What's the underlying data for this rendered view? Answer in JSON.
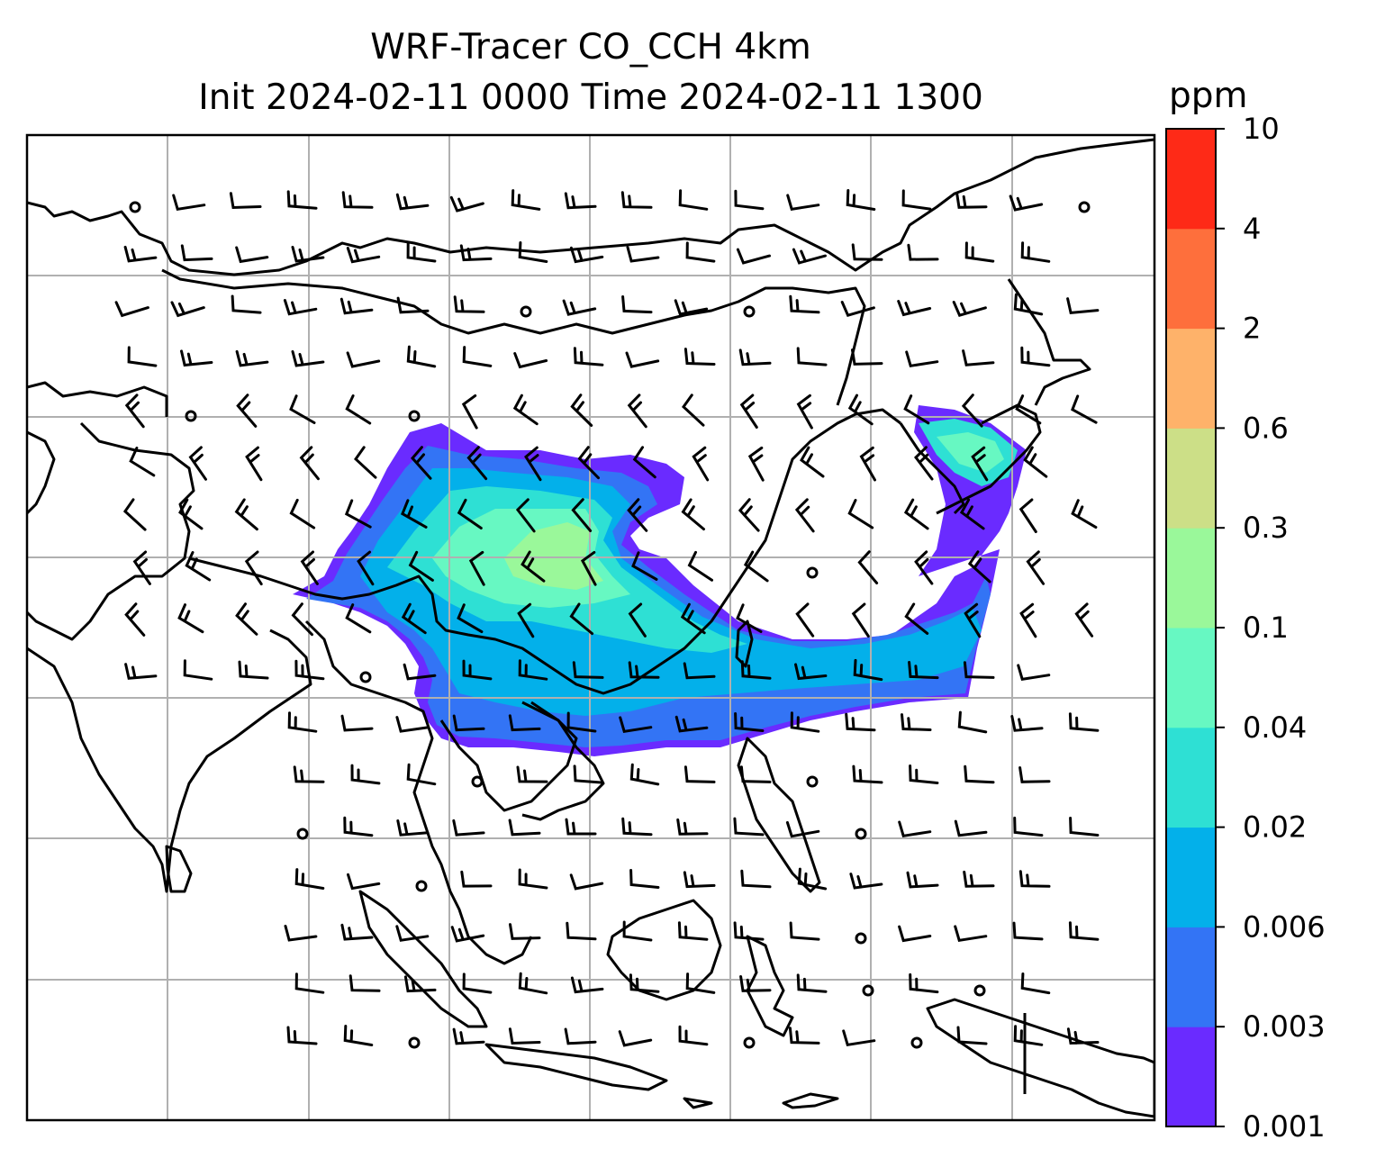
{
  "title": {
    "line1": "WRF-Tracer CO_CCH 4km",
    "line2": "Init 2024-02-11 0000 Time 2024-02-11 1300"
  },
  "colorbar": {
    "unit": "ppm",
    "levels": [
      "0.001",
      "0.003",
      "0.006",
      "0.02",
      "0.04",
      "0.1",
      "0.3",
      "0.6",
      "2",
      "4",
      "10"
    ],
    "colors": [
      "#6a2bff",
      "#3374f5",
      "#03b0ea",
      "#2ee0d4",
      "#67f8c2",
      "#9af89a",
      "#ccdf87",
      "#feb26a",
      "#fe6f3c",
      "#fe2a17"
    ]
  },
  "map": {
    "gridlines": true,
    "coastline_color": "#000000",
    "grid_color": "#b0b0b0"
  },
  "wind_barbs": {
    "color": "#000000"
  }
}
